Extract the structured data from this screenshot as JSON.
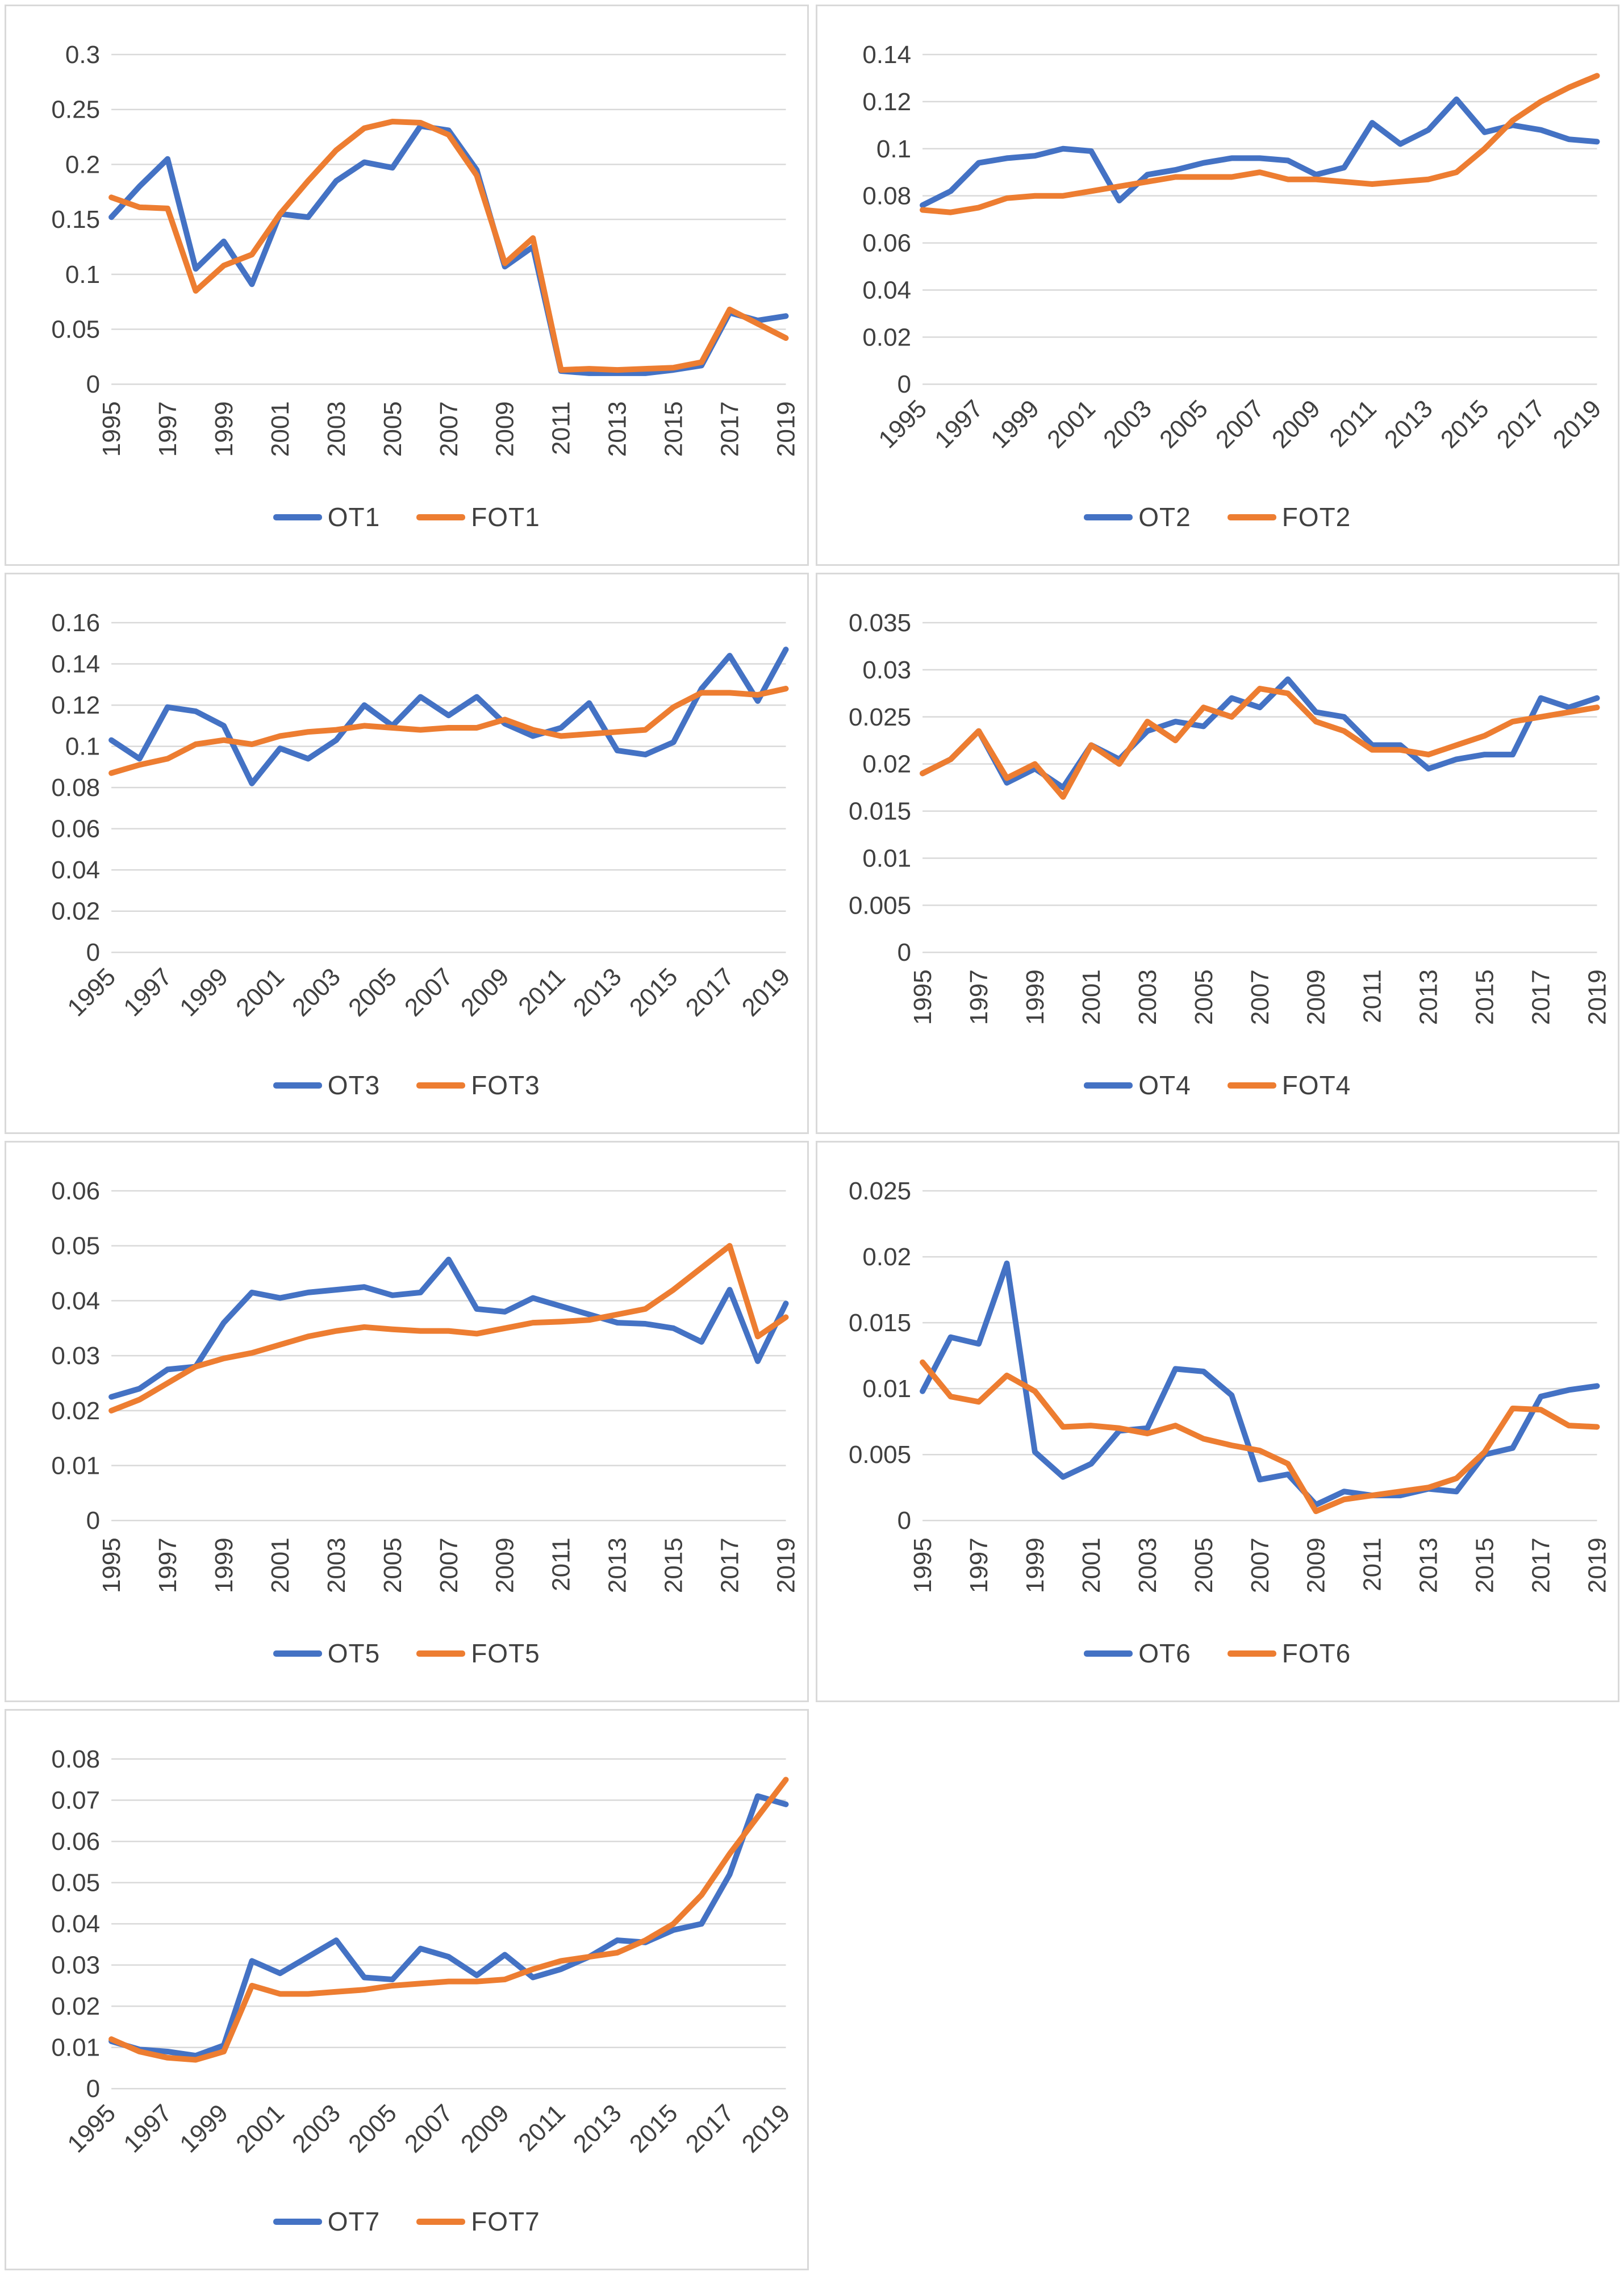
{
  "page": {
    "background": "#ffffff"
  },
  "colors": {
    "series_blue": "#4472C4",
    "series_orange": "#ED7D31",
    "gridline": "#D9D9D9",
    "axis_text": "#404040",
    "chart_border": "#D9D9D9"
  },
  "chart_data": [
    {
      "type": "line",
      "title": "",
      "x_years": [
        1995,
        1996,
        1997,
        1998,
        1999,
        2000,
        2001,
        2002,
        2003,
        2004,
        2005,
        2006,
        2007,
        2008,
        2009,
        2010,
        2011,
        2012,
        2013,
        2014,
        2015,
        2016,
        2017,
        2018,
        2019
      ],
      "x_tick_labels": [
        "1995",
        "1997",
        "1999",
        "2001",
        "2003",
        "2005",
        "2007",
        "2009",
        "2011",
        "2013",
        "2015",
        "2017",
        "2019"
      ],
      "x_label_rotation": 90,
      "ylim": [
        0,
        0.3
      ],
      "y_tick_labels": [
        "0",
        "0.05",
        "0.1",
        "0.15",
        "0.2",
        "0.25",
        "0.3"
      ],
      "grid": true,
      "legend_position": "bottom",
      "series": [
        {
          "name": "OT1",
          "color": "#4472C4",
          "values": [
            0.152,
            0.18,
            0.205,
            0.105,
            0.13,
            0.091,
            0.155,
            0.152,
            0.185,
            0.202,
            0.197,
            0.235,
            0.231,
            0.195,
            0.107,
            0.125,
            0.012,
            0.01,
            0.01,
            0.01,
            0.013,
            0.017,
            0.065,
            0.058,
            0.062
          ]
        },
        {
          "name": "FOT1",
          "color": "#ED7D31",
          "values": [
            0.17,
            0.161,
            0.16,
            0.085,
            0.108,
            0.118,
            0.155,
            0.185,
            0.213,
            0.233,
            0.239,
            0.238,
            0.227,
            0.19,
            0.11,
            0.133,
            0.013,
            0.014,
            0.013,
            0.014,
            0.015,
            0.02,
            0.068,
            0.055,
            0.042
          ]
        }
      ]
    },
    {
      "type": "line",
      "title": "",
      "x_years": [
        1995,
        1996,
        1997,
        1998,
        1999,
        2000,
        2001,
        2002,
        2003,
        2004,
        2005,
        2006,
        2007,
        2008,
        2009,
        2010,
        2011,
        2012,
        2013,
        2014,
        2015,
        2016,
        2017,
        2018,
        2019
      ],
      "x_tick_labels": [
        "1995",
        "1997",
        "1999",
        "2001",
        "2003",
        "2005",
        "2007",
        "2009",
        "2011",
        "2013",
        "2015",
        "2017",
        "2019"
      ],
      "x_label_rotation": 45,
      "ylim": [
        0,
        0.14
      ],
      "y_tick_labels": [
        "0",
        "0.02",
        "0.04",
        "0.06",
        "0.08",
        "0.1",
        "0.12",
        "0.14"
      ],
      "grid": true,
      "legend_position": "bottom",
      "series": [
        {
          "name": "OT2",
          "color": "#4472C4",
          "values": [
            0.076,
            0.082,
            0.094,
            0.096,
            0.097,
            0.1,
            0.099,
            0.078,
            0.089,
            0.091,
            0.094,
            0.096,
            0.096,
            0.095,
            0.089,
            0.092,
            0.111,
            0.102,
            0.108,
            0.121,
            0.107,
            0.11,
            0.108,
            0.104,
            0.103
          ]
        },
        {
          "name": "FOT2",
          "color": "#ED7D31",
          "values": [
            0.074,
            0.073,
            0.075,
            0.079,
            0.08,
            0.08,
            0.082,
            0.084,
            0.086,
            0.088,
            0.088,
            0.088,
            0.09,
            0.087,
            0.087,
            0.086,
            0.085,
            0.086,
            0.087,
            0.09,
            0.1,
            0.112,
            0.12,
            0.126,
            0.131
          ]
        }
      ]
    },
    {
      "type": "line",
      "title": "",
      "x_years": [
        1995,
        1996,
        1997,
        1998,
        1999,
        2000,
        2001,
        2002,
        2003,
        2004,
        2005,
        2006,
        2007,
        2008,
        2009,
        2010,
        2011,
        2012,
        2013,
        2014,
        2015,
        2016,
        2017,
        2018,
        2019
      ],
      "x_tick_labels": [
        "1995",
        "1997",
        "1999",
        "2001",
        "2003",
        "2005",
        "2007",
        "2009",
        "2011",
        "2013",
        "2015",
        "2017",
        "2019"
      ],
      "x_label_rotation": 45,
      "ylim": [
        0,
        0.16
      ],
      "y_tick_labels": [
        "0",
        "0.02",
        "0.04",
        "0.06",
        "0.08",
        "0.1",
        "0.12",
        "0.14",
        "0.16"
      ],
      "grid": true,
      "legend_position": "bottom",
      "series": [
        {
          "name": "OT3",
          "color": "#4472C4",
          "values": [
            0.103,
            0.094,
            0.119,
            0.117,
            0.11,
            0.082,
            0.099,
            0.094,
            0.103,
            0.12,
            0.11,
            0.124,
            0.115,
            0.124,
            0.111,
            0.105,
            0.109,
            0.121,
            0.098,
            0.096,
            0.102,
            0.128,
            0.144,
            0.122,
            0.147
          ]
        },
        {
          "name": "FOT3",
          "color": "#ED7D31",
          "values": [
            0.087,
            0.091,
            0.094,
            0.101,
            0.103,
            0.101,
            0.105,
            0.107,
            0.108,
            0.11,
            0.109,
            0.108,
            0.109,
            0.109,
            0.113,
            0.108,
            0.105,
            0.106,
            0.107,
            0.108,
            0.119,
            0.126,
            0.126,
            0.125,
            0.128
          ]
        }
      ]
    },
    {
      "type": "line",
      "title": "",
      "x_years": [
        1995,
        1996,
        1997,
        1998,
        1999,
        2000,
        2001,
        2002,
        2003,
        2004,
        2005,
        2006,
        2007,
        2008,
        2009,
        2010,
        2011,
        2012,
        2013,
        2014,
        2015,
        2016,
        2017,
        2018,
        2019
      ],
      "x_tick_labels": [
        "1995",
        "1997",
        "1999",
        "2001",
        "2003",
        "2005",
        "2007",
        "2009",
        "2011",
        "2013",
        "2015",
        "2017",
        "2019"
      ],
      "x_label_rotation": 90,
      "ylim": [
        0,
        0.035
      ],
      "y_tick_labels": [
        "0",
        "0.005",
        "0.01",
        "0.015",
        "0.02",
        "0.025",
        "0.03",
        "0.035"
      ],
      "grid": true,
      "legend_position": "bottom",
      "series": [
        {
          "name": "OT4",
          "color": "#4472C4",
          "values": [
            0.019,
            0.0205,
            0.0235,
            0.018,
            0.0195,
            0.0175,
            0.022,
            0.0205,
            0.0235,
            0.0245,
            0.024,
            0.027,
            0.026,
            0.029,
            0.0255,
            0.025,
            0.022,
            0.022,
            0.0195,
            0.0205,
            0.021,
            0.021,
            0.027,
            0.026,
            0.027
          ]
        },
        {
          "name": "FOT4",
          "color": "#ED7D31",
          "values": [
            0.019,
            0.0205,
            0.0235,
            0.0185,
            0.02,
            0.0165,
            0.022,
            0.02,
            0.0245,
            0.0225,
            0.026,
            0.025,
            0.028,
            0.0275,
            0.0245,
            0.0235,
            0.0215,
            0.0215,
            0.021,
            0.022,
            0.023,
            0.0245,
            0.025,
            0.0255,
            0.026
          ]
        }
      ]
    },
    {
      "type": "line",
      "title": "",
      "x_years": [
        1995,
        1996,
        1997,
        1998,
        1999,
        2000,
        2001,
        2002,
        2003,
        2004,
        2005,
        2006,
        2007,
        2008,
        2009,
        2010,
        2011,
        2012,
        2013,
        2014,
        2015,
        2016,
        2017,
        2018,
        2019
      ],
      "x_tick_labels": [
        "1995",
        "1997",
        "1999",
        "2001",
        "2003",
        "2005",
        "2007",
        "2009",
        "2011",
        "2013",
        "2015",
        "2017",
        "2019"
      ],
      "x_label_rotation": 90,
      "ylim": [
        0,
        0.06
      ],
      "y_tick_labels": [
        "0",
        "0.01",
        "0.02",
        "0.03",
        "0.04",
        "0.05",
        "0.06"
      ],
      "grid": true,
      "legend_position": "bottom",
      "series": [
        {
          "name": "OT5",
          "color": "#4472C4",
          "values": [
            0.0225,
            0.024,
            0.0275,
            0.028,
            0.036,
            0.0415,
            0.0405,
            0.0415,
            0.042,
            0.0425,
            0.041,
            0.0415,
            0.0475,
            0.0385,
            0.038,
            0.0405,
            0.039,
            0.0375,
            0.036,
            0.0358,
            0.035,
            0.0325,
            0.042,
            0.029,
            0.0395
          ]
        },
        {
          "name": "FOT5",
          "color": "#ED7D31",
          "values": [
            0.02,
            0.022,
            0.025,
            0.028,
            0.0295,
            0.0305,
            0.032,
            0.0335,
            0.0345,
            0.0352,
            0.0348,
            0.0345,
            0.0345,
            0.034,
            0.035,
            0.036,
            0.0362,
            0.0365,
            0.0375,
            0.0385,
            0.042,
            0.046,
            0.05,
            0.0335,
            0.037
          ]
        }
      ]
    },
    {
      "type": "line",
      "title": "",
      "x_years": [
        1995,
        1996,
        1997,
        1998,
        1999,
        2000,
        2001,
        2002,
        2003,
        2004,
        2005,
        2006,
        2007,
        2008,
        2009,
        2010,
        2011,
        2012,
        2013,
        2014,
        2015,
        2016,
        2017,
        2018,
        2019
      ],
      "x_tick_labels": [
        "1995",
        "1997",
        "1999",
        "2001",
        "2003",
        "2005",
        "2007",
        "2009",
        "2011",
        "2013",
        "2015",
        "2017",
        "2019"
      ],
      "x_label_rotation": 90,
      "ylim": [
        0,
        0.025
      ],
      "y_tick_labels": [
        "0",
        "0.005",
        "0.01",
        "0.015",
        "0.02",
        "0.025"
      ],
      "grid": true,
      "legend_position": "bottom",
      "series": [
        {
          "name": "OT6",
          "color": "#4472C4",
          "values": [
            0.0098,
            0.0139,
            0.0134,
            0.0195,
            0.0052,
            0.0033,
            0.0043,
            0.0068,
            0.007,
            0.0115,
            0.0113,
            0.0095,
            0.0031,
            0.0035,
            0.0012,
            0.0022,
            0.0019,
            0.0019,
            0.0024,
            0.0022,
            0.005,
            0.0055,
            0.0094,
            0.0099,
            0.0102
          ]
        },
        {
          "name": "FOT6",
          "color": "#ED7D31",
          "values": [
            0.012,
            0.0094,
            0.009,
            0.011,
            0.0098,
            0.0071,
            0.0072,
            0.007,
            0.0066,
            0.0072,
            0.0062,
            0.0057,
            0.0053,
            0.0043,
            0.0007,
            0.0016,
            0.0019,
            0.0022,
            0.0025,
            0.0032,
            0.0052,
            0.0085,
            0.0084,
            0.0072,
            0.0071
          ]
        }
      ]
    },
    {
      "type": "line",
      "title": "",
      "x_years": [
        1995,
        1996,
        1997,
        1998,
        1999,
        2000,
        2001,
        2002,
        2003,
        2004,
        2005,
        2006,
        2007,
        2008,
        2009,
        2010,
        2011,
        2012,
        2013,
        2014,
        2015,
        2016,
        2017,
        2018,
        2019
      ],
      "x_tick_labels": [
        "1995",
        "1997",
        "1999",
        "2001",
        "2003",
        "2005",
        "2007",
        "2009",
        "2011",
        "2013",
        "2015",
        "2017",
        "2019"
      ],
      "x_label_rotation": 45,
      "ylim": [
        0,
        0.08
      ],
      "y_tick_labels": [
        "0",
        "0.01",
        "0.02",
        "0.03",
        "0.04",
        "0.05",
        "0.06",
        "0.07",
        "0.08"
      ],
      "grid": true,
      "legend_position": "bottom",
      "series": [
        {
          "name": "OT7",
          "color": "#4472C4",
          "values": [
            0.0115,
            0.0095,
            0.009,
            0.008,
            0.0105,
            0.031,
            0.028,
            0.032,
            0.036,
            0.027,
            0.0265,
            0.034,
            0.032,
            0.0275,
            0.0325,
            0.027,
            0.029,
            0.032,
            0.036,
            0.0355,
            0.0385,
            0.04,
            0.052,
            0.071,
            0.069
          ]
        },
        {
          "name": "FOT7",
          "color": "#ED7D31",
          "values": [
            0.012,
            0.009,
            0.0075,
            0.007,
            0.009,
            0.025,
            0.023,
            0.023,
            0.0235,
            0.024,
            0.025,
            0.0255,
            0.026,
            0.026,
            0.0265,
            0.029,
            0.031,
            0.032,
            0.033,
            0.036,
            0.04,
            0.047,
            0.057,
            0.066,
            0.075
          ]
        }
      ]
    }
  ]
}
